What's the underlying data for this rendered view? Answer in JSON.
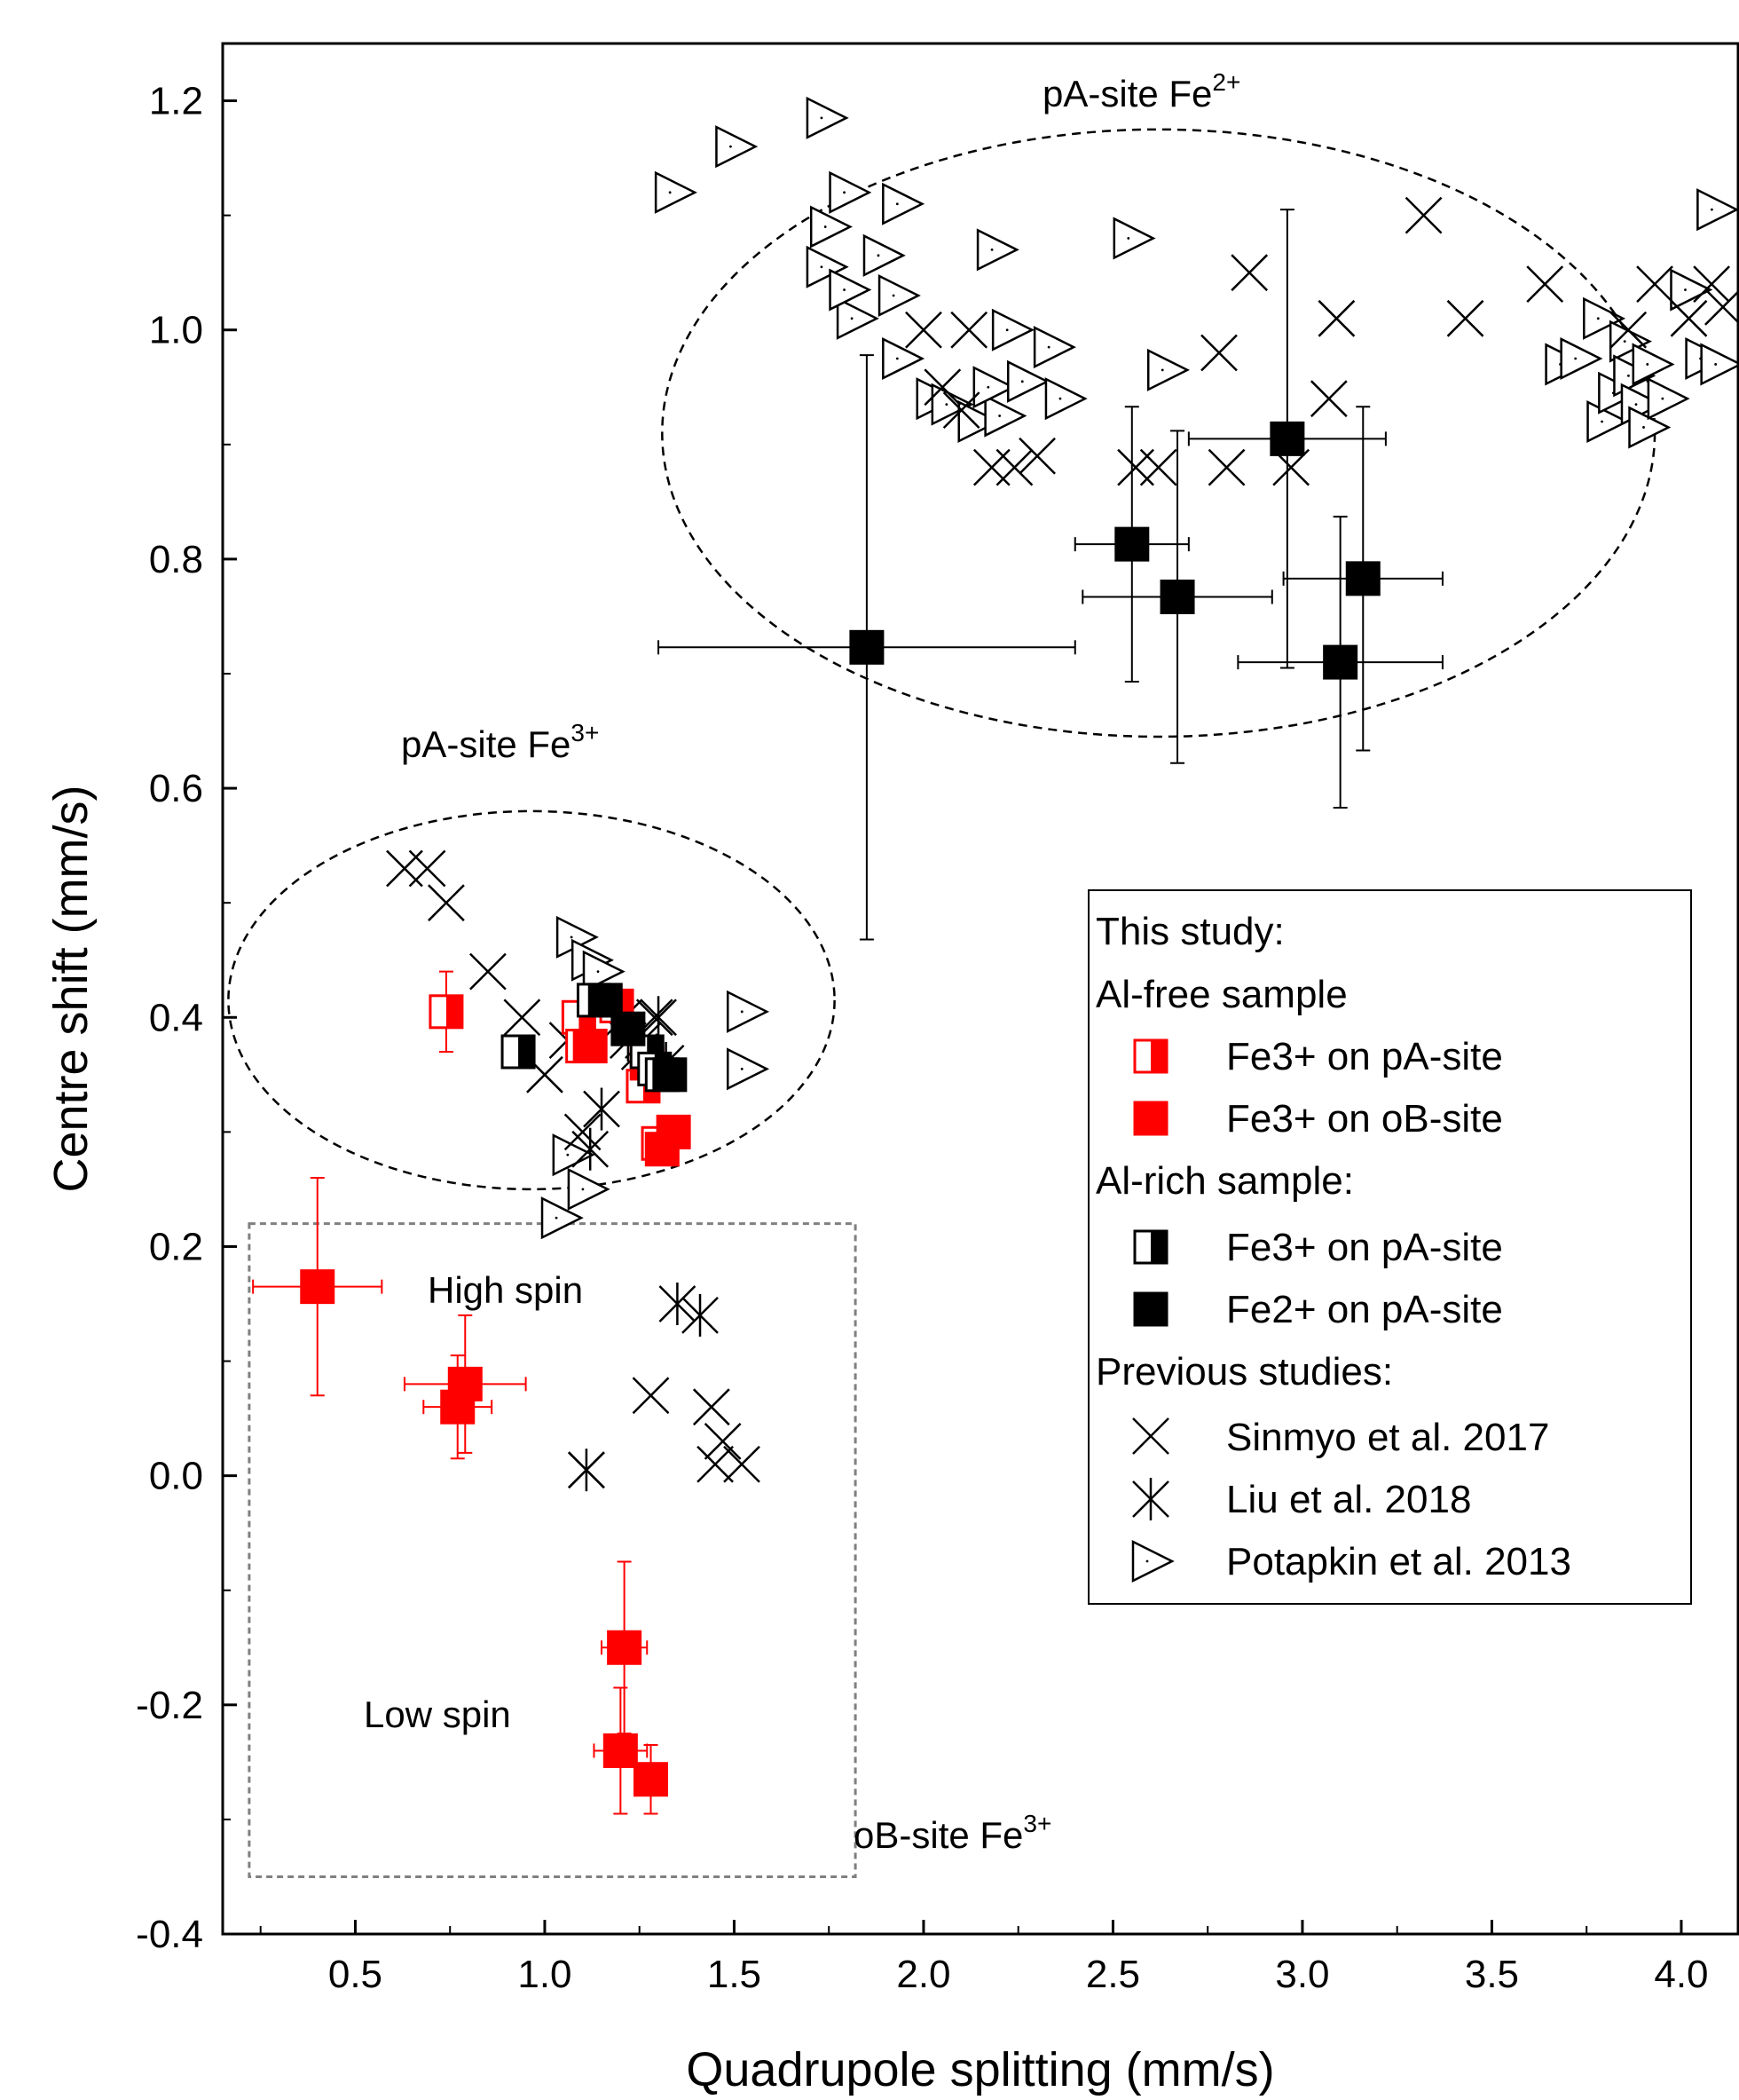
{
  "chart_data": {
    "type": "scatter",
    "xlabel": "Quadrupole splitting (mm/s)",
    "ylabel": "Centre shift (mm/s)",
    "xlim": [
      0.15,
      4.15
    ],
    "ylim": [
      -0.4,
      1.25
    ],
    "x_ticks": [
      "0.5",
      "1.0",
      "1.5",
      "2.0",
      "2.5",
      "3.0",
      "3.5",
      "4.0"
    ],
    "y_ticks": [
      "-0.4",
      "-0.2",
      "0.0",
      "0.2",
      "0.4",
      "0.6",
      "0.8",
      "1.0",
      "1.2"
    ],
    "x_tick_values": [
      0.5,
      1.0,
      1.5,
      2.0,
      2.5,
      3.0,
      3.5,
      4.0
    ],
    "y_tick_values": [
      -0.4,
      -0.2,
      0.0,
      0.2,
      0.4,
      0.6,
      0.8,
      1.0,
      1.2
    ],
    "grid": false,
    "legend_position": "right",
    "colors": {
      "red": "#ff0000",
      "black": "#000000"
    },
    "annotations": {
      "pa_fe2": {
        "text": "pA-site Fe",
        "sup": "2+"
      },
      "pa_fe3": {
        "text": "pA-site Fe",
        "sup": "3+"
      },
      "ob_fe3": {
        "text": "oB-site Fe",
        "sup": "3+"
      },
      "high_spin": "High spin",
      "low_spin": "Low spin"
    },
    "regions": [
      {
        "shape": "ellipse",
        "cx": 2.62,
        "cy": 0.91,
        "rx": 1.31,
        "ry": 0.265,
        "style": "dashed"
      },
      {
        "shape": "ellipse",
        "cx": 0.965,
        "cy": 0.415,
        "rx": 0.8,
        "ry": 0.165,
        "style": "dashed"
      },
      {
        "shape": "rectangle",
        "x0": 0.22,
        "x1": 1.82,
        "y0": -0.35,
        "y1": 0.22,
        "style": "dotted",
        "color": "#808080"
      }
    ],
    "legend": {
      "heading1": "This study:",
      "heading2": "Al-free sample",
      "item1": "Fe3+ on pA-site",
      "item2": "Fe3+ on oB-site",
      "heading3": "Al-rich sample:",
      "item3": "Fe3+ on pA-site",
      "item4": "Fe2+ on pA-site",
      "heading4": "Previous studies:",
      "item5": "Sinmyo et al. 2017",
      "item6": "Liu et al. 2018",
      "item7": "Potapkin et al. 2013"
    },
    "series": [
      {
        "name": "Fe3+ on pA-site (Al-free sample)",
        "marker": "half-square-red",
        "points": [
          {
            "x": 0.74,
            "y": 0.405,
            "yerr": 0.035
          },
          {
            "x": 1.09,
            "y": 0.4
          },
          {
            "x": 1.1,
            "y": 0.375
          },
          {
            "x": 1.19,
            "y": 0.41
          },
          {
            "x": 1.26,
            "y": 0.34
          },
          {
            "x": 1.3,
            "y": 0.29
          }
        ]
      },
      {
        "name": "Fe3+ on oB-site (Al-free sample)",
        "marker": "square-red",
        "points": [
          {
            "x": 0.4,
            "y": 0.165,
            "xerr": 0.17,
            "yerr": 0.095
          },
          {
            "x": 0.79,
            "y": 0.08,
            "xerr": 0.16,
            "yerr": 0.06
          },
          {
            "x": 0.77,
            "y": 0.06,
            "xerr": 0.09,
            "yerr": 0.045
          },
          {
            "x": 1.21,
            "y": -0.15,
            "xerr": 0.06,
            "yerr": 0.075
          },
          {
            "x": 1.2,
            "y": -0.24,
            "xerr": 0.07,
            "yerr": 0.055
          },
          {
            "x": 1.28,
            "y": -0.265,
            "xerr": 0.04,
            "yerr": 0.03
          },
          {
            "x": 1.12,
            "y": 0.375
          },
          {
            "x": 1.27,
            "y": 0.36
          },
          {
            "x": 1.34,
            "y": 0.3
          },
          {
            "x": 1.31,
            "y": 0.285
          }
        ]
      },
      {
        "name": "Fe3+ on pA-site (Al-rich sample)",
        "marker": "half-square-black",
        "points": [
          {
            "x": 0.93,
            "y": 0.37
          },
          {
            "x": 1.13,
            "y": 0.415
          },
          {
            "x": 1.27,
            "y": 0.37
          },
          {
            "x": 1.29,
            "y": 0.355
          },
          {
            "x": 1.31,
            "y": 0.35
          }
        ]
      },
      {
        "name": "Fe2+ on pA-site (Al-rich sample)",
        "marker": "square-black",
        "points": [
          {
            "x": 1.85,
            "y": 0.723,
            "xerr": 0.55,
            "yerr": 0.255
          },
          {
            "x": 2.55,
            "y": 0.813,
            "xerr": 0.15,
            "yerr": 0.12
          },
          {
            "x": 2.67,
            "y": 0.767,
            "xerr": 0.25,
            "yerr": 0.145
          },
          {
            "x": 2.96,
            "y": 0.905,
            "xerr": 0.26,
            "yerr": 0.2
          },
          {
            "x": 3.16,
            "y": 0.783,
            "xerr": 0.21,
            "yerr": 0.15
          },
          {
            "x": 3.1,
            "y": 0.71,
            "xerr": 0.27,
            "yerr": 0.127
          },
          {
            "x": 1.16,
            "y": 0.415
          },
          {
            "x": 1.22,
            "y": 0.39
          },
          {
            "x": 1.33,
            "y": 0.35
          }
        ]
      },
      {
        "name": "Sinmyo et al. 2017",
        "marker": "cross",
        "points": [
          {
            "x": 0.63,
            "y": 0.53
          },
          {
            "x": 0.69,
            "y": 0.53
          },
          {
            "x": 0.74,
            "y": 0.5
          },
          {
            "x": 0.85,
            "y": 0.44
          },
          {
            "x": 0.94,
            "y": 0.4
          },
          {
            "x": 1.0,
            "y": 0.35
          },
          {
            "x": 1.06,
            "y": 0.38
          },
          {
            "x": 1.1,
            "y": 0.3
          },
          {
            "x": 1.21,
            "y": 0.4
          },
          {
            "x": 1.26,
            "y": 0.38
          },
          {
            "x": 1.29,
            "y": 0.4
          },
          {
            "x": 1.11,
            "y": 0.005
          },
          {
            "x": 1.28,
            "y": 0.07
          },
          {
            "x": 1.44,
            "y": 0.06
          },
          {
            "x": 1.47,
            "y": 0.03
          },
          {
            "x": 1.45,
            "y": 0.01
          },
          {
            "x": 1.52,
            "y": 0.01
          },
          {
            "x": 2.0,
            "y": 1.0
          },
          {
            "x": 2.12,
            "y": 1.0
          },
          {
            "x": 2.05,
            "y": 0.95
          },
          {
            "x": 2.1,
            "y": 0.93
          },
          {
            "x": 2.18,
            "y": 0.88
          },
          {
            "x": 2.24,
            "y": 0.88
          },
          {
            "x": 2.3,
            "y": 0.89
          },
          {
            "x": 2.56,
            "y": 0.88
          },
          {
            "x": 2.62,
            "y": 0.88
          },
          {
            "x": 2.78,
            "y": 0.98
          },
          {
            "x": 2.8,
            "y": 0.88
          },
          {
            "x": 2.86,
            "y": 1.05
          },
          {
            "x": 2.97,
            "y": 0.88
          },
          {
            "x": 3.07,
            "y": 0.94
          },
          {
            "x": 3.09,
            "y": 1.01
          },
          {
            "x": 3.32,
            "y": 1.1
          },
          {
            "x": 3.43,
            "y": 1.01
          },
          {
            "x": 3.64,
            "y": 1.04
          },
          {
            "x": 3.86,
            "y": 1.0
          },
          {
            "x": 3.93,
            "y": 1.04
          },
          {
            "x": 4.02,
            "y": 1.01
          },
          {
            "x": 4.08,
            "y": 1.04
          },
          {
            "x": 4.11,
            "y": 1.02
          }
        ]
      },
      {
        "name": "Liu et al. 2018",
        "marker": "asterisk",
        "points": [
          {
            "x": 1.12,
            "y": 0.285
          },
          {
            "x": 1.15,
            "y": 0.32
          },
          {
            "x": 1.22,
            "y": 0.38
          },
          {
            "x": 1.25,
            "y": 0.37
          },
          {
            "x": 1.3,
            "y": 0.4
          },
          {
            "x": 1.32,
            "y": 0.36
          },
          {
            "x": 1.11,
            "y": 0.005
          },
          {
            "x": 1.35,
            "y": 0.15
          },
          {
            "x": 1.41,
            "y": 0.14
          }
        ]
      },
      {
        "name": "Potapkin et al. 2013",
        "marker": "triangle-right",
        "points": [
          {
            "x": 1.34,
            "y": 1.12
          },
          {
            "x": 1.5,
            "y": 1.16
          },
          {
            "x": 1.74,
            "y": 1.185
          },
          {
            "x": 1.8,
            "y": 1.12
          },
          {
            "x": 1.75,
            "y": 1.09
          },
          {
            "x": 1.74,
            "y": 1.055
          },
          {
            "x": 1.82,
            "y": 1.01
          },
          {
            "x": 1.8,
            "y": 1.035
          },
          {
            "x": 1.89,
            "y": 1.065
          },
          {
            "x": 1.94,
            "y": 1.11
          },
          {
            "x": 1.93,
            "y": 1.03
          },
          {
            "x": 1.94,
            "y": 0.975
          },
          {
            "x": 2.03,
            "y": 0.94
          },
          {
            "x": 2.07,
            "y": 0.935
          },
          {
            "x": 2.14,
            "y": 0.92
          },
          {
            "x": 2.21,
            "y": 0.925
          },
          {
            "x": 2.18,
            "y": 0.95
          },
          {
            "x": 2.19,
            "y": 1.07
          },
          {
            "x": 2.23,
            "y": 1.0
          },
          {
            "x": 2.27,
            "y": 0.955
          },
          {
            "x": 2.34,
            "y": 0.985
          },
          {
            "x": 2.37,
            "y": 0.94
          },
          {
            "x": 2.55,
            "y": 1.08
          },
          {
            "x": 2.64,
            "y": 0.965
          },
          {
            "x": 3.69,
            "y": 0.97
          },
          {
            "x": 3.73,
            "y": 0.975
          },
          {
            "x": 3.79,
            "y": 1.01
          },
          {
            "x": 3.8,
            "y": 0.92
          },
          {
            "x": 3.83,
            "y": 0.945
          },
          {
            "x": 3.86,
            "y": 0.99
          },
          {
            "x": 3.87,
            "y": 0.96
          },
          {
            "x": 3.89,
            "y": 0.935
          },
          {
            "x": 3.91,
            "y": 0.915
          },
          {
            "x": 3.92,
            "y": 0.97
          },
          {
            "x": 3.96,
            "y": 0.94
          },
          {
            "x": 4.02,
            "y": 1.035
          },
          {
            "x": 4.06,
            "y": 0.975
          },
          {
            "x": 4.1,
            "y": 0.97
          },
          {
            "x": 4.09,
            "y": 1.105
          },
          {
            "x": 1.08,
            "y": 0.47
          },
          {
            "x": 1.12,
            "y": 0.45
          },
          {
            "x": 1.15,
            "y": 0.44
          },
          {
            "x": 1.53,
            "y": 0.405
          },
          {
            "x": 1.53,
            "y": 0.355
          },
          {
            "x": 1.07,
            "y": 0.28
          },
          {
            "x": 1.11,
            "y": 0.25
          },
          {
            "x": 1.04,
            "y": 0.225
          }
        ]
      }
    ]
  }
}
